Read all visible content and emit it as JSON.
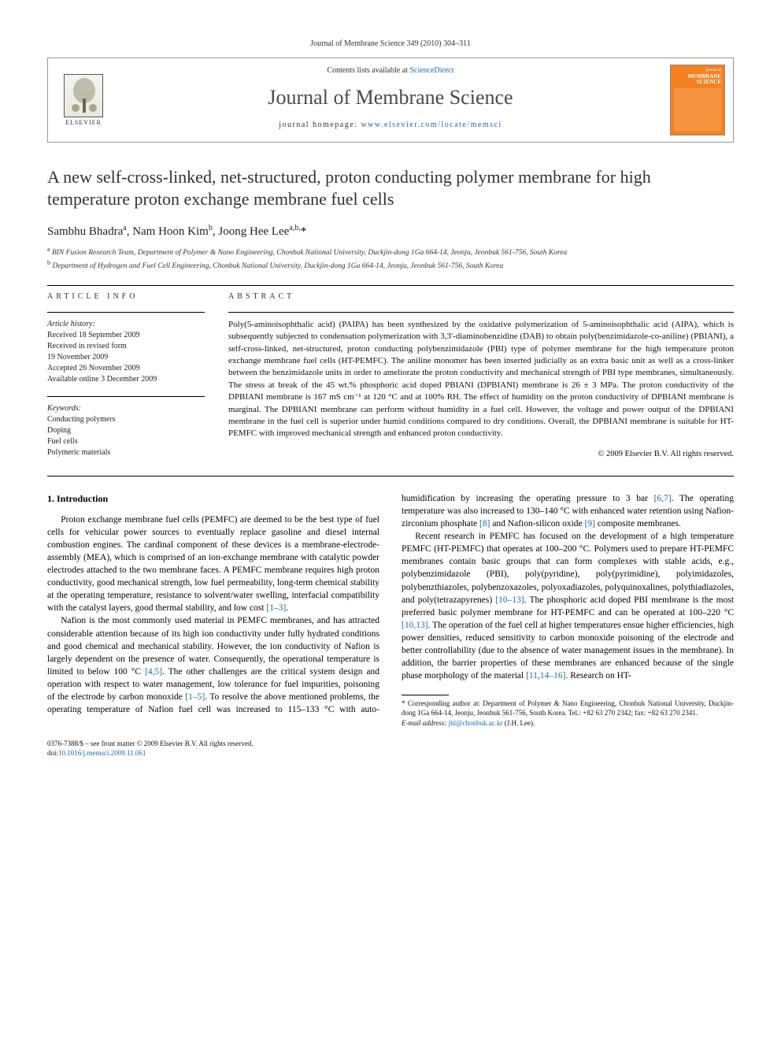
{
  "header_citation": "Journal of Membrane Science 349 (2010) 304–311",
  "masthead": {
    "contents_prefix": "Contents lists available at ",
    "contents_link": "ScienceDirect",
    "journal": "Journal of Membrane Science",
    "homepage_prefix": "journal homepage: ",
    "homepage_link": "www.elsevier.com/locate/memsci",
    "publisher": "ELSEVIER",
    "cover_label_small": "journal of",
    "cover_label_big": "MEMBRANE SCIENCE"
  },
  "title": "A new self-cross-linked, net-structured, proton conducting polymer membrane for high temperature proton exchange membrane fuel cells",
  "authors_html": "Sambhu Bhadra<sup>a</sup>, Nam Hoon Kim<sup>b</sup>, Joong Hee Lee<sup>a,b,</sup><span class='star'>*</span>",
  "affiliations": {
    "a": "BIN Fusion Research Team, Department of Polymer & Nano Engineering, Chonbuk National University, Duckjin-dong 1Ga 664-14, Jeonju, Jeonbuk 561-756, South Korea",
    "b": "Department of Hydrogen and Fuel Cell Engineering, Chonbuk National University, Duckjin-dong 1Ga 664-14, Jeonju, Jeonbuk 561-756, South Korea"
  },
  "article_info": {
    "heading": "ARTICLE INFO",
    "history_label": "Article history:",
    "received": "Received 18 September 2009",
    "revised1": "Received in revised form",
    "revised2": "19 November 2009",
    "accepted": "Accepted 26 November 2009",
    "online": "Available online 3 December 2009",
    "keywords_label": "Keywords:",
    "keywords": [
      "Conducting polymers",
      "Doping",
      "Fuel cells",
      "Polymeric materials"
    ]
  },
  "abstract": {
    "heading": "ABSTRACT",
    "text": "Poly(5-aminoisophthalic acid) (PAIPA) has been synthesized by the oxidative polymerization of 5-aminoisophthalic acid (AIPA), which is subsequently subjected to condensation polymerization with 3,3'-diaminobenzidine (DAB) to obtain poly(benzimidazole-co-aniline) (PBIANI), a self-cross-linked, net-structured, proton conducting polybenzimidazole (PBI) type of polymer membrane for the high temperature proton exchange membrane fuel cells (HT-PEMFC). The aniline monomer has been inserted judicially as an extra basic unit as well as a cross-linker between the benzimidazole units in order to ameliorate the proton conductivity and mechanical strength of PBI type membranes, simultaneously. The stress at break of the 45 wt.% phosphoric acid doped PBIANI (DPBIANI) membrane is 26 ± 3 MPa. The proton conductivity of the DPBIANI membrane is 167 mS cm⁻¹ at 120 °C and at 100% RH. The effect of humidity on the proton conductivity of DPBIANI membrane is marginal. The DPBIANI membrane can perform without humidity in a fuel cell. However, the voltage and power output of the DPBIANI membrane in the fuel cell is superior under humid conditions compared to dry conditions. Overall, the DPBIANI membrane is suitable for HT-PEMFC with improved mechanical strength and enhanced proton conductivity.",
    "copyright": "© 2009 Elsevier B.V. All rights reserved."
  },
  "body": {
    "section1_heading": "1.  Introduction",
    "p1": "Proton exchange membrane fuel cells (PEMFC) are deemed to be the best type of fuel cells for vehicular power sources to eventually replace gasoline and diesel internal combustion engines. The cardinal component of these devices is a membrane-electrode-assembly (MEA), which is comprised of an ion-exchange membrane with catalytic powder electrodes attached to the two membrane faces. A PEMFC membrane requires high proton conductivity, good mechanical strength, low fuel permeability, long-term chemical stability at the operating temperature, resistance to solvent/water swelling, interfacial compatibility with the catalyst layers, good thermal stability, and low cost ",
    "p1_ref": "[1–3]",
    "p1_end": ".",
    "p2a": "Nafion is the most commonly used material in PEMFC membranes, and has attracted considerable attention because of its high ion conductivity under fully hydrated conditions and good chemical and mechanical stability. However, the ion conductivity of Nafion is largely dependent on the presence of water. Consequently, the operational temperature is limited to below 100 °C ",
    "p2_ref1": "[4,5]",
    "p2b": ". The other challenges are the critical system design and operation with respect to water management, low tolerance for fuel impurities, poisoning of the electrode by carbon monoxide ",
    "p2_ref2": "[1–5]",
    "p2c": ". To resolve the above mentioned problems, the operating temperature of Nafion fuel cell was increased to 115–133 °C with auto-humidification by increasing the operating pressure to 3 bar ",
    "p2_ref3": "[6,7]",
    "p2d": ". The operating temperature was also increased to 130–140 °C with enhanced water retention using Nafion-zirconium phosphate ",
    "p2_ref4": "[8]",
    "p2e": " and Nafion-silicon oxide ",
    "p2_ref5": "[9]",
    "p2f": " composite membranes.",
    "p3a": "Recent research in PEMFC has focused on the development of a high temperature PEMFC (HT-PEMFC) that operates at 100–200 °C. Polymers used to prepare HT-PEMFC membranes contain basic groups that can form complexes with stable acids, e.g., polybenzimidazole (PBI), poly(pyridine), poly(pyrimidine), polyimidazoles, polybenzthiazoles, polybenzoxazoles, polyoxadiazoles, polyquinoxalines, polythiadiazoles, and poly(tetrazapyrenes) ",
    "p3_ref1": "[10–13]",
    "p3b": ". The phosphoric acid doped PBI membrane is the most preferred basic polymer membrane for HT-PEMFC and can be operated at 100–220 °C ",
    "p3_ref2": "[10,13]",
    "p3c": ". The operation of the fuel cell at higher temperatures ensue higher efficiencies, high power densities, reduced sensitivity to carbon monoxide poisoning of the electrode and better controllability (due to the absence of water management issues in the membrane). In addition, the barrier properties of these membranes are enhanced because of the single phase morphology of the material ",
    "p3_ref3": "[11,14–16]",
    "p3d": ". Research on HT-"
  },
  "footnote": {
    "corr": "* Corresponding author at: Department of Polymer & Nano Engineering, Chonbuk National University, Duckjin-dong 1Ga 664-14, Jeonju, Jeonbuk 561-756, South Korea. Tel.: +82 63 270 2342; fax: +82 63 270 2341.",
    "email_label": "E-mail address: ",
    "email": "jhl@chonbuk.ac.kr",
    "email_suffix": " (J.H. Lee)."
  },
  "bottom": {
    "issn": "0376-7388/$ – see front matter © 2009 Elsevier B.V. All rights reserved.",
    "doi_label": "doi:",
    "doi": "10.1016/j.memsci.2009.11.061"
  },
  "colors": {
    "link": "#1a6bb3",
    "cover": "#f58220",
    "text": "#000000"
  }
}
